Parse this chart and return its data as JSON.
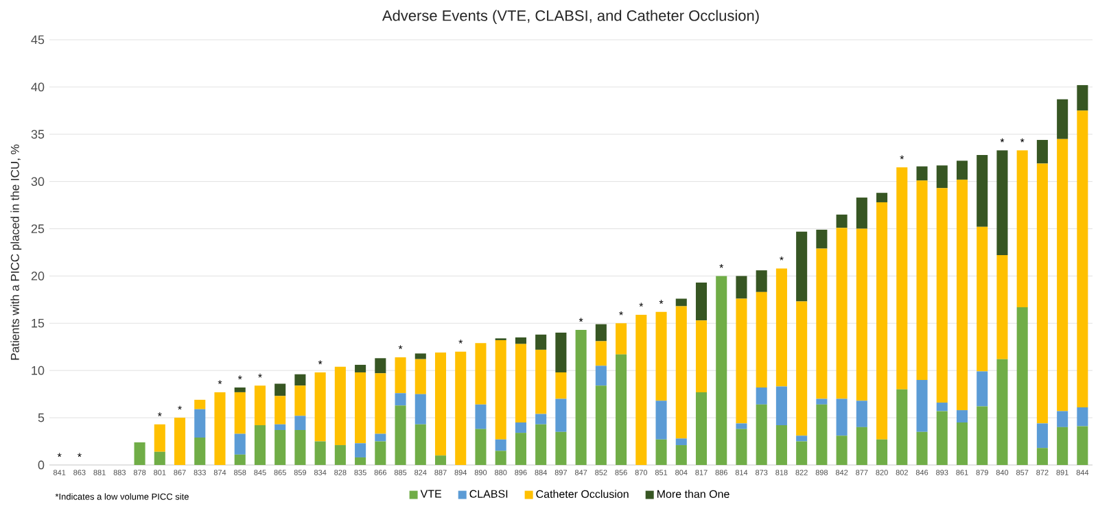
{
  "chart_data": {
    "type": "bar",
    "stacked": true,
    "title": "Adverse Events (VTE, CLABSI, and Catheter Occlusion)",
    "ylabel": "Patients with a PICC placed in the ICU, %",
    "categories": [
      "841",
      "863",
      "881",
      "883",
      "878",
      "801",
      "867",
      "833",
      "874",
      "858",
      "845",
      "865",
      "859",
      "834",
      "828",
      "835",
      "866",
      "885",
      "824",
      "887",
      "894",
      "890",
      "880",
      "896",
      "884",
      "897",
      "847",
      "852",
      "856",
      "870",
      "851",
      "804",
      "817",
      "886",
      "814",
      "873",
      "818",
      "822",
      "898",
      "842",
      "877",
      "820",
      "802",
      "846",
      "893",
      "861",
      "879",
      "840",
      "857",
      "872",
      "891",
      "844"
    ],
    "series": [
      {
        "name": "VTE",
        "color": "#70ad47",
        "values": [
          0,
          0,
          0,
          0,
          2.4,
          1.4,
          0,
          2.9,
          0,
          1.1,
          4.2,
          3.7,
          3.7,
          2.5,
          2.1,
          0.8,
          2.5,
          6.3,
          4.3,
          1.0,
          0,
          3.8,
          1.5,
          3.4,
          4.3,
          3.5,
          14.3,
          8.4,
          11.7,
          0,
          2.7,
          2.1,
          7.7,
          20.0,
          3.8,
          6.4,
          4.2,
          2.5,
          6.4,
          3.1,
          4.0,
          2.7,
          8.0,
          3.5,
          5.7,
          4.5,
          6.2,
          11.2,
          16.7,
          1.8,
          4.0,
          4.1
        ]
      },
      {
        "name": "CLABSI",
        "color": "#5b9bd5",
        "values": [
          0,
          0,
          0,
          0,
          0,
          0,
          0,
          3.0,
          0,
          2.2,
          0,
          0.6,
          1.5,
          0,
          0,
          1.5,
          0.8,
          1.3,
          3.2,
          0,
          0,
          2.6,
          1.2,
          1.1,
          1.1,
          3.5,
          0,
          2.1,
          0,
          0,
          4.1,
          0.7,
          0,
          0,
          0.6,
          1.8,
          4.1,
          0.6,
          0.6,
          3.9,
          2.8,
          0,
          0,
          5.5,
          0.9,
          1.3,
          3.7,
          0,
          0,
          2.6,
          1.7,
          2.0
        ]
      },
      {
        "name": "Catheter Occlusion",
        "color": "#ffc000",
        "values": [
          0,
          0,
          0,
          0,
          0,
          2.9,
          5.0,
          1.0,
          7.7,
          4.4,
          4.2,
          3.0,
          3.2,
          7.3,
          8.3,
          7.5,
          6.4,
          3.8,
          3.7,
          10.9,
          12.0,
          6.5,
          10.5,
          8.3,
          6.8,
          2.8,
          0,
          2.6,
          3.3,
          15.9,
          9.4,
          14.0,
          7.6,
          0,
          13.2,
          10.1,
          12.5,
          14.2,
          15.9,
          18.1,
          18.2,
          25.1,
          23.5,
          21.1,
          22.7,
          24.4,
          15.3,
          11.0,
          16.6,
          27.5,
          28.8,
          31.4
        ]
      },
      {
        "name": "More than One",
        "color": "#375623",
        "values": [
          0,
          0,
          0,
          0,
          0,
          0,
          0,
          0,
          0,
          0.5,
          0,
          1.3,
          1.2,
          0,
          0,
          0.8,
          1.6,
          0,
          0.6,
          0,
          0,
          0,
          0.2,
          0.7,
          1.6,
          4.2,
          0,
          1.8,
          0,
          0,
          0,
          0.8,
          4.0,
          0,
          2.4,
          2.3,
          0,
          7.4,
          2.0,
          1.4,
          3.3,
          1.0,
          0,
          1.5,
          2.4,
          2.0,
          7.6,
          11.1,
          0,
          2.5,
          4.2,
          2.7
        ]
      }
    ],
    "ylim": [
      0,
      45
    ],
    "yticks": [
      0,
      5,
      10,
      15,
      20,
      25,
      30,
      35,
      40,
      45
    ],
    "grid": "y",
    "legend": "bottom",
    "annotations": [
      {
        "text": "*",
        "x": "841",
        "y": 0
      },
      {
        "text": "*",
        "x": "863",
        "y": 0
      },
      {
        "text": "*",
        "x": "801",
        "y": 4.3
      },
      {
        "text": "*",
        "x": "867",
        "y": 5.0
      },
      {
        "text": "*",
        "x": "874",
        "y": 7.7
      },
      {
        "text": "*",
        "x": "858",
        "y": 8.2
      },
      {
        "text": "*",
        "x": "845",
        "y": 8.4
      },
      {
        "text": "*",
        "x": "834",
        "y": 9.8
      },
      {
        "text": "*",
        "x": "885",
        "y": 11.4
      },
      {
        "text": "*",
        "x": "894",
        "y": 12.0
      },
      {
        "text": "*",
        "x": "847",
        "y": 14.3
      },
      {
        "text": "*",
        "x": "856",
        "y": 15.0
      },
      {
        "text": "*",
        "x": "870",
        "y": 15.9
      },
      {
        "text": "*",
        "x": "851",
        "y": 16.2
      },
      {
        "text": "*",
        "x": "886",
        "y": 20.0
      },
      {
        "text": "*",
        "x": "818",
        "y": 20.8
      },
      {
        "text": "*",
        "x": "802",
        "y": 31.5
      },
      {
        "text": "*",
        "x": "840",
        "y": 33.3
      },
      {
        "text": "*",
        "x": "857",
        "y": 33.3
      },
      "*Indicates a low volume PICC site"
    ]
  }
}
